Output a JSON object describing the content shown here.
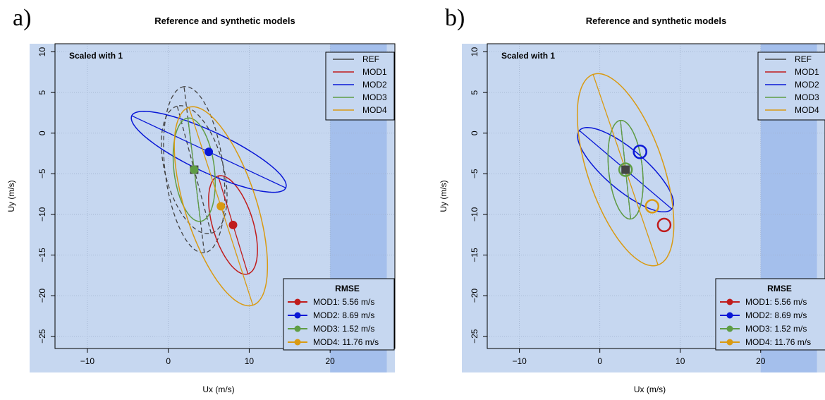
{
  "chart_data": [
    {
      "type": "ellipse-scatter",
      "panel_label": "a)",
      "title": "Reference and synthetic models",
      "xlabel": "Ux (m/s)",
      "ylabel": "Uy (m/s)",
      "xlim": [
        -14,
        28
      ],
      "ylim": [
        -26.5,
        11
      ],
      "xticks": [
        -10,
        0,
        10,
        20
      ],
      "yticks": [
        10,
        5,
        0,
        -5,
        -10,
        -15,
        -20,
        -25
      ],
      "grid": true,
      "note": "Scaled with 1",
      "legend_position": "top-right",
      "series": [
        {
          "name": "REF",
          "color": "#444444",
          "center": [
            3.2,
            -4.5
          ],
          "marker": "square",
          "marker_filled": true,
          "ellipses": [
            {
              "center": [
                3.2,
                -4.5
              ],
              "semi_major": 8.1,
              "semi_minor": 3.6,
              "angle_deg": 105,
              "dashed": true
            },
            {
              "center": [
                3.2,
                -4.5
              ],
              "semi_major": 10.3,
              "semi_minor": 3.6,
              "angle_deg": 97,
              "dashed": true
            }
          ]
        },
        {
          "name": "MOD1",
          "color": "#c01c1c",
          "center": [
            8.0,
            -11.3
          ],
          "marker": "circle",
          "marker_filled": true,
          "ellipses": [
            {
              "center": [
                8.0,
                -11.3
              ],
              "semi_major": 6.3,
              "semi_minor": 2.5,
              "angle_deg": 107,
              "dashed": false
            }
          ]
        },
        {
          "name": "MOD2",
          "color": "#0a18d6",
          "center": [
            5.0,
            -2.3
          ],
          "marker": "circle",
          "marker_filled": true,
          "ellipses": [
            {
              "center": [
                5.0,
                -2.3
              ],
              "semi_major": 10.5,
              "semi_minor": 2.5,
              "angle_deg": 155,
              "dashed": false
            }
          ]
        },
        {
          "name": "MOD3",
          "color": "#5f9d45",
          "center": [
            3.2,
            -4.5
          ],
          "marker": "circle",
          "marker_filled": true,
          "ellipses": [
            {
              "center": [
                3.2,
                -4.5
              ],
              "semi_major": 6.4,
              "semi_minor": 2.5,
              "angle_deg": 97,
              "dashed": false
            }
          ]
        },
        {
          "name": "MOD4",
          "color": "#d99a12",
          "center": [
            6.5,
            -9.0
          ],
          "marker": "circle",
          "marker_filled": true,
          "ellipses": [
            {
              "center": [
                6.5,
                -9.0
              ],
              "semi_major": 12.8,
              "semi_minor": 4.4,
              "angle_deg": 108,
              "dashed": false
            }
          ]
        }
      ],
      "rmse_title": "RMSE",
      "rmse": [
        {
          "label": "MOD1: 5.56 m/s",
          "color": "#c01c1c"
        },
        {
          "label": "MOD2: 8.69 m/s",
          "color": "#0a18d6"
        },
        {
          "label": "MOD3: 1.52 m/s",
          "color": "#5f9d45"
        },
        {
          "label": "MOD4: 11.76 m/s",
          "color": "#d99a12"
        }
      ]
    },
    {
      "type": "ellipse-scatter",
      "panel_label": "b)",
      "title": "Reference and synthetic models",
      "xlabel": "Ux (m/s)",
      "ylabel": "Uy (m/s)",
      "xlim": [
        -14,
        28
      ],
      "ylim": [
        -26.5,
        11
      ],
      "xticks": [
        -10,
        0,
        10,
        20
      ],
      "yticks": [
        10,
        5,
        0,
        -5,
        -10,
        -15,
        -20,
        -25
      ],
      "grid": true,
      "note": "Scaled with 1",
      "legend_position": "top-right",
      "series": [
        {
          "name": "REF",
          "color": "#444444",
          "center": [
            3.2,
            -4.5
          ],
          "marker": "square",
          "marker_filled": true,
          "ellipses": [
            {
              "center": [
                3.2,
                -4.5
              ],
              "semi_major": 6.1,
              "semi_minor": 2.1,
              "angle_deg": 96,
              "dashed": true
            }
          ]
        },
        {
          "name": "MOD1",
          "color": "#c01c1c",
          "center": [
            8.0,
            -11.3
          ],
          "marker": "circle",
          "marker_filled": false,
          "ellipses": []
        },
        {
          "name": "MOD2",
          "color": "#0a18d6",
          "center": [
            5.0,
            -2.3
          ],
          "marker": "circle",
          "marker_filled": false,
          "ellipses": [
            {
              "center": [
                3.2,
                -4.5
              ],
              "semi_major": 7.5,
              "semi_minor": 2.5,
              "angle_deg": 140,
              "dashed": false
            }
          ]
        },
        {
          "name": "MOD3",
          "color": "#5f9d45",
          "center": [
            3.2,
            -4.5
          ],
          "marker": "circle",
          "marker_filled": false,
          "ellipses": [
            {
              "center": [
                3.2,
                -4.5
              ],
              "semi_major": 6.1,
              "semi_minor": 2.1,
              "angle_deg": 96,
              "dashed": false
            }
          ]
        },
        {
          "name": "MOD4",
          "color": "#d99a12",
          "center": [
            6.5,
            -9.0
          ],
          "marker": "circle",
          "marker_filled": false,
          "ellipses": [
            {
              "center": [
                3.2,
                -4.5
              ],
              "semi_major": 12.4,
              "semi_minor": 4.7,
              "angle_deg": 109,
              "dashed": false
            }
          ]
        }
      ],
      "rmse_title": "RMSE",
      "rmse": [
        {
          "label": "MOD1: 5.56 m/s",
          "color": "#c01c1c"
        },
        {
          "label": "MOD2: 8.69 m/s",
          "color": "#0a18d6"
        },
        {
          "label": "MOD3: 1.52 m/s",
          "color": "#5f9d45"
        },
        {
          "label": "MOD4: 11.76 m/s",
          "color": "#d99a12"
        }
      ]
    }
  ],
  "colors": {
    "plot_background": "#c6d7f0",
    "highlight_band": "#a4bfec",
    "grid": "#9fb1cc"
  }
}
